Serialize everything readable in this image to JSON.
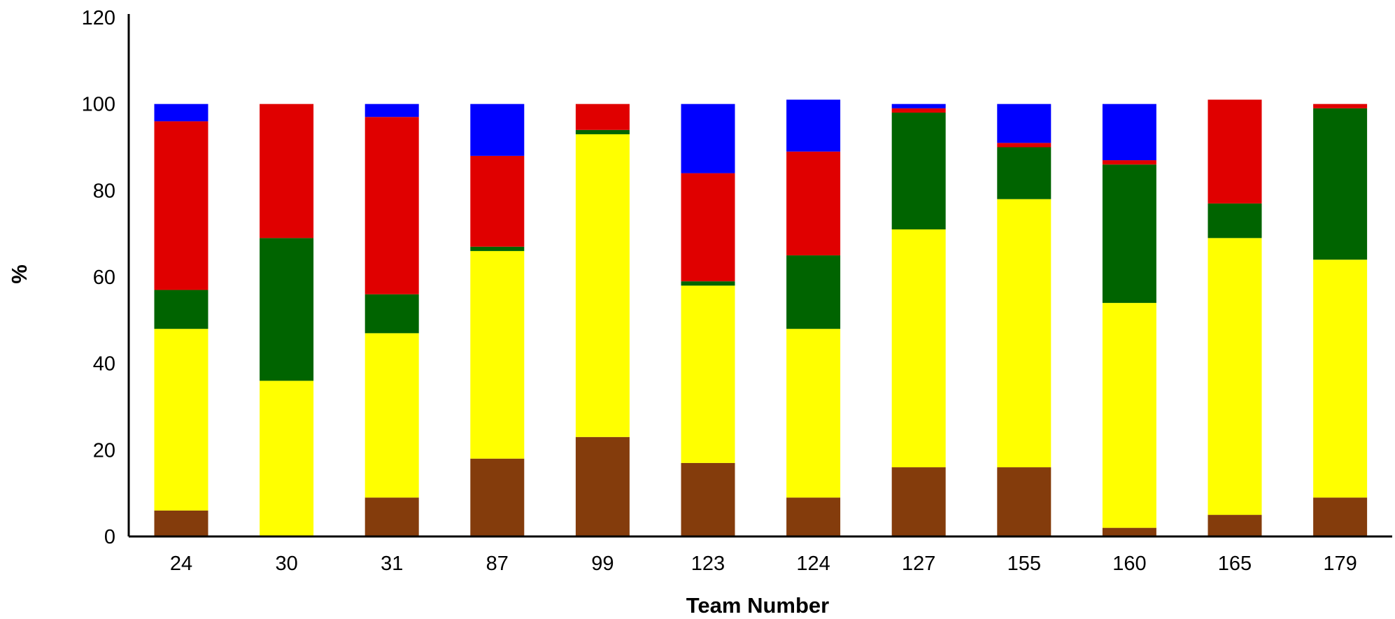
{
  "chart_data": {
    "type": "bar",
    "stacked": true,
    "xlabel": "Team Number",
    "ylabel": "%",
    "ylim": [
      0,
      120
    ],
    "yticks": [
      0,
      20,
      40,
      60,
      80,
      100,
      120
    ],
    "grid": false,
    "categories": [
      "24",
      "30",
      "31",
      "87",
      "99",
      "123",
      "124",
      "127",
      "155",
      "160",
      "165",
      "179"
    ],
    "series": [
      {
        "color": "#843c0c",
        "values": [
          6,
          0,
          9,
          18,
          23,
          17,
          9,
          16,
          16,
          2,
          5,
          9
        ]
      },
      {
        "color": "#ffff00",
        "values": [
          42,
          36,
          38,
          48,
          70,
          41,
          39,
          55,
          62,
          52,
          64,
          55
        ]
      },
      {
        "color": "#006400",
        "values": [
          9,
          33,
          9,
          1,
          1,
          1,
          17,
          27,
          12,
          32,
          8,
          35
        ]
      },
      {
        "color": "#e00000",
        "values": [
          39,
          31,
          41,
          21,
          6,
          25,
          24,
          1,
          1,
          1,
          24,
          1
        ]
      },
      {
        "color": "#0000ff",
        "values": [
          4,
          0,
          3,
          12,
          0,
          16,
          12,
          1,
          9,
          13,
          0,
          0
        ]
      }
    ]
  }
}
